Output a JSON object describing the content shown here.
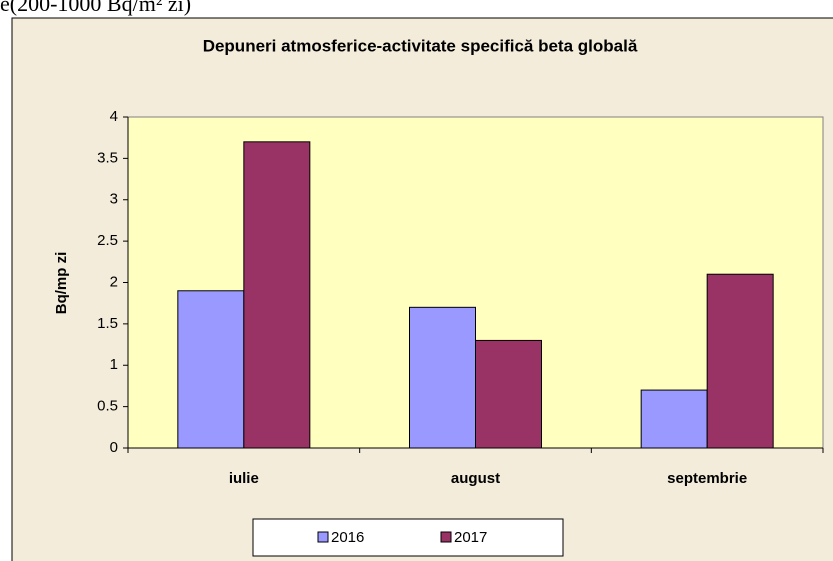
{
  "context_text": "e(200-1000 Bq/m² zi)",
  "chart_data": {
    "type": "bar",
    "title": "Depuneri atmosferice-activitate specifică beta globală",
    "y_label": "Bq/mp zi",
    "categories": [
      "iulie",
      "august",
      "septembrie"
    ],
    "series": [
      {
        "name": "2016",
        "color": "#9999ff",
        "values": [
          1.9,
          1.7,
          0.7
        ]
      },
      {
        "name": "2017",
        "color": "#993366",
        "values": [
          3.7,
          1.3,
          2.1
        ]
      }
    ],
    "ylim": [
      0,
      4
    ],
    "yticks": [
      0,
      0.5,
      1,
      1.5,
      2,
      2.5,
      3,
      3.5,
      4
    ],
    "grid": false,
    "legend": "bottom"
  }
}
